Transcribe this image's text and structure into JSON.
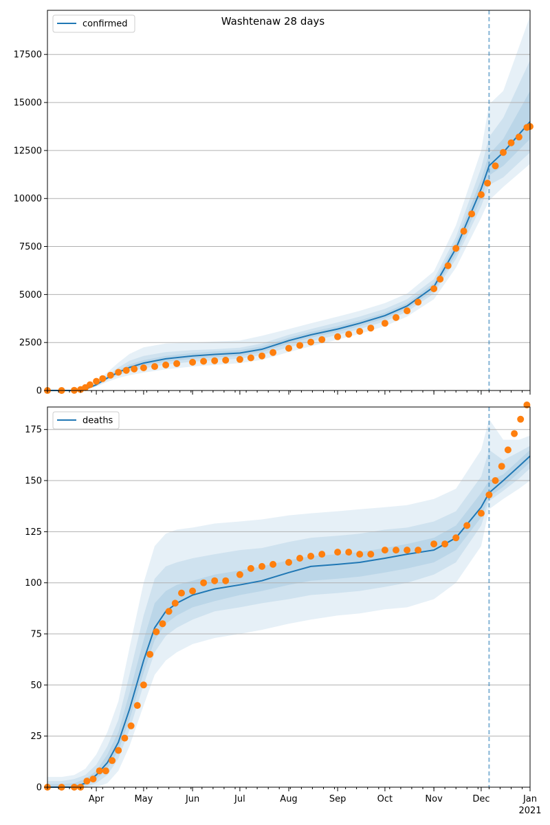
{
  "title": "Washtenaw 28 days",
  "colors": {
    "model_line": "#1f77b4",
    "observed_points": "#ff7f0e",
    "band": "#1f77b4",
    "grid": "#b0b0b0",
    "vline": "#1f77b4"
  },
  "x_ticks": [
    "Apr",
    "May",
    "Jun",
    "Jul",
    "Aug",
    "Sep",
    "Oct",
    "Nov",
    "Dec",
    "Jan"
  ],
  "x_year_label": "2021",
  "chart_data": [
    {
      "type": "line",
      "title": "Washtenaw 28 days",
      "legend": "confirmed",
      "legend_position": "top-left",
      "grid": "horizontal",
      "xlabel": "",
      "ylabel": "",
      "x_range": [
        "2020-03-01",
        "2021-01-01"
      ],
      "ylim": [
        0,
        19800
      ],
      "yticks": [
        0,
        2500,
        5000,
        7500,
        10000,
        12500,
        15000,
        17500
      ],
      "forecast_start": "2020-12-06",
      "series": [
        {
          "name": "confirmed",
          "kind": "model",
          "x": [
            "2020-03-01",
            "2020-03-10",
            "2020-03-18",
            "2020-03-25",
            "2020-04-01",
            "2020-04-08",
            "2020-04-15",
            "2020-04-22",
            "2020-05-01",
            "2020-05-15",
            "2020-06-01",
            "2020-06-15",
            "2020-07-01",
            "2020-07-15",
            "2020-08-01",
            "2020-08-15",
            "2020-09-01",
            "2020-09-15",
            "2020-10-01",
            "2020-10-15",
            "2020-11-01",
            "2020-11-15",
            "2020-12-01",
            "2020-12-06",
            "2020-12-15",
            "2021-01-01"
          ],
          "y": [
            0,
            0,
            0,
            60,
            300,
            650,
            950,
            1200,
            1430,
            1650,
            1800,
            1880,
            1950,
            2150,
            2600,
            2900,
            3200,
            3500,
            3900,
            4400,
            5400,
            7400,
            10500,
            11700,
            12400,
            14000
          ],
          "bands": [
            {
              "lower": [
                0,
                0,
                0,
                20,
                200,
                450,
                650,
                800,
                930,
                1100,
                1250,
                1330,
                1420,
                1600,
                2000,
                2300,
                2650,
                2950,
                3350,
                3850,
                4750,
                6400,
                9000,
                9900,
                10600,
                11800
              ],
              "upper": [
                60,
                60,
                70,
                140,
                460,
                950,
                1450,
                1900,
                2250,
                2450,
                2500,
                2550,
                2600,
                2850,
                3200,
                3500,
                3850,
                4150,
                4550,
                5050,
                6200,
                8600,
                12500,
                14900,
                15600,
                19500
              ]
            },
            {
              "lower": [
                0,
                0,
                0,
                40,
                240,
                550,
                800,
                1000,
                1150,
                1350,
                1500,
                1580,
                1650,
                1850,
                2250,
                2550,
                2900,
                3200,
                3600,
                4100,
                5050,
                6850,
                9600,
                10700,
                11100,
                12400
              ],
              "upper": [
                30,
                30,
                40,
                90,
                380,
                800,
                1200,
                1550,
                1800,
                2000,
                2100,
                2150,
                2230,
                2450,
                2900,
                3200,
                3550,
                3850,
                4250,
                4750,
                5800,
                8000,
                11600,
                13200,
                14200,
                17200
              ]
            },
            {
              "lower": [
                0,
                0,
                0,
                50,
                270,
                600,
                880,
                1100,
                1300,
                1500,
                1650,
                1730,
                1800,
                2000,
                2450,
                2750,
                3050,
                3350,
                3750,
                4250,
                5200,
                7100,
                10000,
                11200,
                11700,
                13100
              ],
              "upper": [
                15,
                15,
                20,
                75,
                330,
                720,
                1050,
                1350,
                1580,
                1800,
                1950,
                2030,
                2100,
                2300,
                2750,
                3050,
                3350,
                3650,
                4050,
                4550,
                5600,
                7700,
                11000,
                12300,
                13100,
                15600
              ]
            }
          ]
        },
        {
          "name": "",
          "kind": "observed",
          "x": [
            "2020-03-01",
            "2020-03-10",
            "2020-03-18",
            "2020-03-22",
            "2020-03-25",
            "2020-03-28",
            "2020-04-01",
            "2020-04-05",
            "2020-04-10",
            "2020-04-15",
            "2020-04-20",
            "2020-04-25",
            "2020-05-01",
            "2020-05-08",
            "2020-05-15",
            "2020-05-22",
            "2020-06-01",
            "2020-06-08",
            "2020-06-15",
            "2020-06-22",
            "2020-07-01",
            "2020-07-08",
            "2020-07-15",
            "2020-07-22",
            "2020-08-01",
            "2020-08-08",
            "2020-08-15",
            "2020-08-22",
            "2020-09-01",
            "2020-09-08",
            "2020-09-15",
            "2020-09-22",
            "2020-10-01",
            "2020-10-08",
            "2020-10-15",
            "2020-10-22",
            "2020-11-01",
            "2020-11-05",
            "2020-11-10",
            "2020-11-15",
            "2020-11-20",
            "2020-11-25",
            "2020-12-01",
            "2020-12-05",
            "2020-12-10",
            "2020-12-15",
            "2020-12-20",
            "2020-12-25",
            "2020-12-30",
            "2021-01-01"
          ],
          "y": [
            0,
            0,
            10,
            50,
            150,
            300,
            480,
            620,
            800,
            950,
            1050,
            1120,
            1180,
            1250,
            1330,
            1400,
            1470,
            1520,
            1550,
            1580,
            1620,
            1700,
            1800,
            1980,
            2200,
            2350,
            2520,
            2650,
            2800,
            2930,
            3080,
            3250,
            3500,
            3800,
            4150,
            4600,
            5300,
            5800,
            6500,
            7400,
            8300,
            9200,
            10200,
            10800,
            11700,
            12400,
            12900,
            13200,
            13700,
            13750
          ]
        }
      ]
    },
    {
      "type": "line",
      "legend": "deaths",
      "legend_position": "top-left",
      "grid": "horizontal",
      "xlabel": "",
      "ylabel": "",
      "x_range": [
        "2020-03-01",
        "2021-01-01"
      ],
      "ylim": [
        0,
        186
      ],
      "yticks": [
        0,
        25,
        50,
        75,
        100,
        125,
        150,
        175
      ],
      "forecast_start": "2020-12-06",
      "series": [
        {
          "name": "deaths",
          "kind": "model",
          "x": [
            "2020-03-01",
            "2020-03-10",
            "2020-03-18",
            "2020-03-25",
            "2020-04-01",
            "2020-04-08",
            "2020-04-15",
            "2020-04-22",
            "2020-05-01",
            "2020-05-08",
            "2020-05-15",
            "2020-05-22",
            "2020-06-01",
            "2020-06-15",
            "2020-07-01",
            "2020-07-15",
            "2020-08-01",
            "2020-08-15",
            "2020-09-01",
            "2020-09-15",
            "2020-10-01",
            "2020-10-15",
            "2020-11-01",
            "2020-11-15",
            "2020-12-01",
            "2020-12-06",
            "2020-12-15",
            "2020-12-25",
            "2021-01-01"
          ],
          "y": [
            0,
            0,
            0,
            2,
            6,
            12,
            22,
            38,
            62,
            78,
            86,
            90,
            94,
            97,
            99,
            101,
            105,
            108,
            109,
            110,
            112,
            114,
            116,
            122,
            137,
            144,
            150,
            157,
            162
          ],
          "bands": [
            {
              "lower": [
                0,
                0,
                0,
                0,
                0,
                2,
                8,
                20,
                40,
                55,
                62,
                66,
                70,
                73,
                75,
                77,
                80,
                82,
                84,
                85,
                87,
                88,
                92,
                100,
                118,
                136,
                141,
                146,
                150
              ],
              "upper": [
                5,
                5,
                6,
                9,
                16,
                27,
                42,
                68,
                100,
                118,
                124,
                126,
                127,
                129,
                130,
                131,
                133,
                134,
                135,
                136,
                137,
                138,
                141,
                146,
                165,
                180,
                170,
                170,
                172
              ]
            },
            {
              "lower": [
                0,
                0,
                0,
                0,
                2,
                6,
                14,
                28,
                50,
                66,
                74,
                78,
                82,
                86,
                88,
                90,
                92,
                94,
                95,
                96,
                98,
                100,
                104,
                110,
                128,
                140,
                145,
                151,
                156
              ],
              "upper": [
                3,
                3,
                4,
                6,
                11,
                20,
                33,
                55,
                84,
                102,
                108,
                110,
                112,
                114,
                116,
                117,
                120,
                122,
                123,
                124,
                126,
                127,
                130,
                135,
                152,
                165,
                160,
                164,
                167
              ]
            },
            {
              "lower": [
                0,
                0,
                0,
                1,
                4,
                9,
                18,
                33,
                56,
                72,
                80,
                84,
                88,
                91,
                94,
                96,
                99,
                101,
                102,
                103,
                105,
                107,
                110,
                116,
                132,
                142,
                147,
                154,
                159
              ],
              "upper": [
                1.5,
                1.5,
                2,
                4,
                8,
                16,
                27,
                46,
                72,
                90,
                96,
                99,
                101,
                104,
                106,
                108,
                111,
                113,
                114,
                115,
                117,
                119,
                122,
                128,
                144,
                150,
                153,
                160,
                165
              ]
            }
          ]
        },
        {
          "name": "",
          "kind": "observed",
          "x": [
            "2020-03-01",
            "2020-03-10",
            "2020-03-18",
            "2020-03-22",
            "2020-03-26",
            "2020-03-30",
            "2020-04-03",
            "2020-04-07",
            "2020-04-11",
            "2020-04-15",
            "2020-04-19",
            "2020-04-23",
            "2020-04-27",
            "2020-05-01",
            "2020-05-05",
            "2020-05-09",
            "2020-05-13",
            "2020-05-17",
            "2020-05-21",
            "2020-05-25",
            "2020-06-01",
            "2020-06-08",
            "2020-06-15",
            "2020-06-22",
            "2020-07-01",
            "2020-07-08",
            "2020-07-15",
            "2020-07-22",
            "2020-08-01",
            "2020-08-08",
            "2020-08-15",
            "2020-08-22",
            "2020-09-01",
            "2020-09-08",
            "2020-09-15",
            "2020-09-22",
            "2020-10-01",
            "2020-10-08",
            "2020-10-15",
            "2020-10-22",
            "2020-11-01",
            "2020-11-08",
            "2020-11-15",
            "2020-11-22",
            "2020-12-01",
            "2020-12-06",
            "2020-12-10",
            "2020-12-14",
            "2020-12-18",
            "2020-12-22",
            "2020-12-26",
            "2020-12-30"
          ],
          "y": [
            0,
            0,
            0,
            0,
            3,
            4,
            8,
            8,
            13,
            18,
            24,
            30,
            40,
            50,
            65,
            76,
            80,
            86,
            90,
            95,
            96,
            100,
            101,
            101,
            104,
            107,
            108,
            109,
            110,
            112,
            113,
            114,
            115,
            115,
            114,
            114,
            116,
            116,
            116,
            116,
            119,
            119,
            122,
            128,
            134,
            143,
            150,
            157,
            165,
            173,
            180,
            187
          ]
        }
      ]
    }
  ]
}
